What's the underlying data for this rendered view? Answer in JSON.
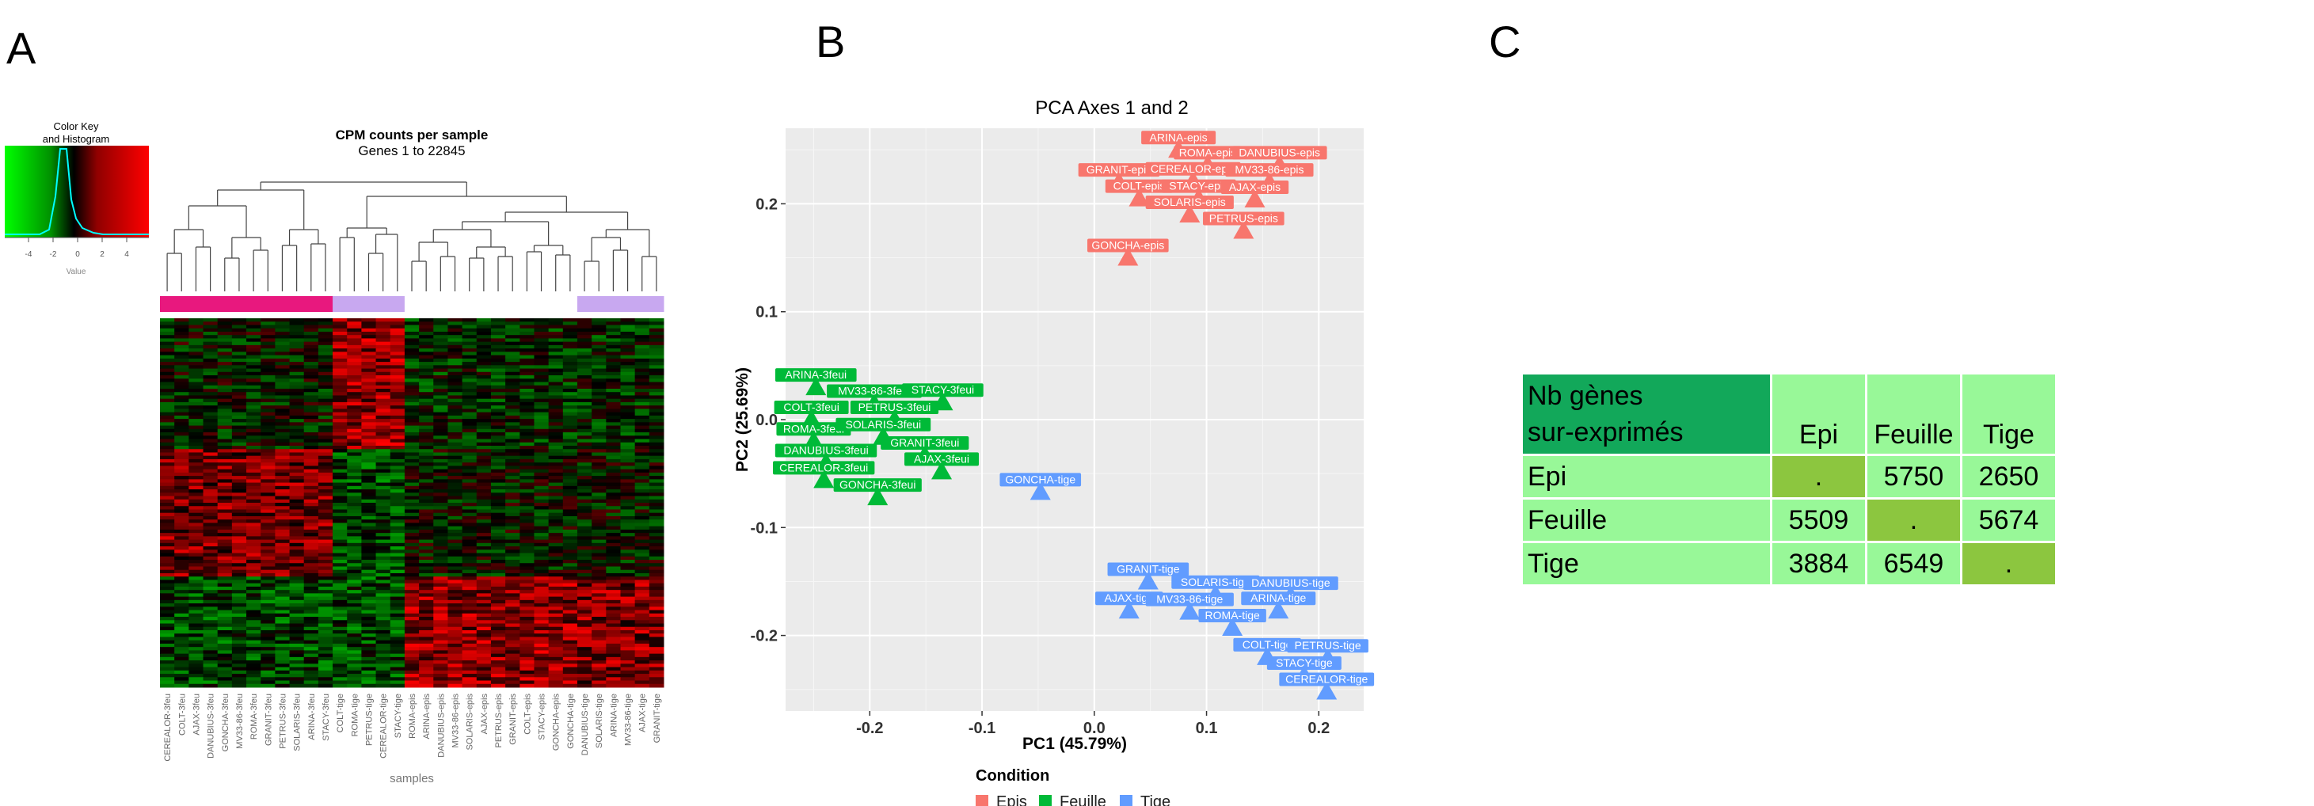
{
  "panels": {
    "a": "A",
    "b": "B",
    "c": "C"
  },
  "colors": {
    "epis": "#F8766D",
    "feuille": "#00BA38",
    "tige": "#619CFF",
    "pink": "#E8187E",
    "lavender": "#C8A8F0",
    "heat_green": "#00C000",
    "heat_red": "#FF0000",
    "table_dark": "#12A85A",
    "table_light": "#98F898",
    "table_mid": "#8CC63F",
    "plot_bg": "#EBEBEB"
  },
  "heatmap": {
    "title_line1": "CPM counts per sample",
    "title_line2": "Genes 1 to 22845",
    "color_key_title_line1": "Color Key",
    "color_key_title_line2": "and Histogram",
    "color_key_ticks": [
      "-4",
      "-2",
      "0",
      "2",
      "4"
    ],
    "color_key_xlabel": "Value",
    "xlabel": "samples",
    "samples": [
      "CEREALOR-3feu",
      "COLT-3feu",
      "AJAX-3feu",
      "DANUBIUS-3feu",
      "GONCHA-3feu",
      "MV33-86-3feu",
      "ROMA-3feu",
      "GRANIT-3feu",
      "PETRUS-3feu",
      "SOLARIS-3feu",
      "ARINA-3feu",
      "STACY-3feu",
      "COLT-tige",
      "ROMA-tige",
      "PETRUS-tige",
      "CEREALOR-tige",
      "STACY-tige",
      "ROMA-epis",
      "ARINA-epis",
      "DANUBIUS-epis",
      "MV33-86-epis",
      "SOLARIS-epis",
      "AJAX-epis",
      "PETRUS-epis",
      "GRANIT-epis",
      "COLT-epis",
      "STACY-epis",
      "GONCHA-epis",
      "GONCHA-tige",
      "DANUBIUS-tige",
      "SOLARIS-tige",
      "ARINA-tige",
      "MV33-86-tige",
      "AJAX-tige",
      "GRANIT-tige"
    ],
    "condition_bar": [
      "pink",
      "pink",
      "pink",
      "pink",
      "pink",
      "pink",
      "pink",
      "pink",
      "pink",
      "pink",
      "pink",
      "pink",
      "lavender",
      "lavender",
      "lavender",
      "lavender",
      "lavender",
      "white",
      "white",
      "white",
      "white",
      "white",
      "white",
      "white",
      "white",
      "white",
      "white",
      "white",
      "white",
      "lavender",
      "lavender",
      "lavender",
      "lavender",
      "lavender",
      "lavender"
    ]
  },
  "chart_data": {
    "type": "scatter",
    "title": "PCA Axes 1 and 2",
    "xlabel": "PC1 (45.79%)",
    "ylabel": "PC2 (25.69%)",
    "xlim": [
      -0.275,
      0.24
    ],
    "ylim": [
      -0.27,
      0.27
    ],
    "xticks": [
      -0.2,
      -0.1,
      0.0,
      0.1,
      0.2
    ],
    "xtick_labels": [
      "-0.2",
      "-0.1",
      "0.0",
      "0.1",
      "0.2"
    ],
    "yticks": [
      -0.2,
      -0.1,
      0.0,
      0.1,
      0.2
    ],
    "ytick_labels": [
      "-0.2",
      "-0.1",
      "0.0",
      "0.1",
      "0.2"
    ],
    "grid": true,
    "legend": {
      "title": "Condition",
      "placement": "bottom",
      "entries": [
        "Epis",
        "Feuille",
        "Tige"
      ]
    },
    "series": [
      {
        "name": "Epis",
        "points": [
          {
            "label": "ARINA-epis",
            "x": 0.075,
            "y": 0.25
          },
          {
            "label": "ROMA-epis",
            "x": 0.101,
            "y": 0.236
          },
          {
            "label": "DANUBIUS-epis",
            "x": 0.165,
            "y": 0.236
          },
          {
            "label": "GRANIT-epis",
            "x": 0.022,
            "y": 0.22
          },
          {
            "label": "CEREALOR-epis",
            "x": 0.088,
            "y": 0.221
          },
          {
            "label": "MV33-86-epis",
            "x": 0.156,
            "y": 0.22
          },
          {
            "label": "COLT-epis",
            "x": 0.04,
            "y": 0.205
          },
          {
            "label": "STACY-epis",
            "x": 0.093,
            "y": 0.205
          },
          {
            "label": "AJAX-epis",
            "x": 0.143,
            "y": 0.204
          },
          {
            "label": "SOLARIS-epis",
            "x": 0.085,
            "y": 0.19
          },
          {
            "label": "PETRUS-epis",
            "x": 0.133,
            "y": 0.175
          },
          {
            "label": "GONCHA-epis",
            "x": 0.03,
            "y": 0.15
          }
        ]
      },
      {
        "name": "Feuille",
        "points": [
          {
            "label": "ARINA-3feui",
            "x": -0.248,
            "y": 0.03
          },
          {
            "label": "MV33-86-3feui",
            "x": -0.196,
            "y": 0.015
          },
          {
            "label": "STACY-3feui",
            "x": -0.135,
            "y": 0.016
          },
          {
            "label": "COLT-3feui",
            "x": -0.252,
            "y": 0.0
          },
          {
            "label": "PETRUS-3feui",
            "x": -0.178,
            "y": 0.0
          },
          {
            "label": "ROMA-3feui",
            "x": -0.25,
            "y": -0.02
          },
          {
            "label": "SOLARIS-3feui",
            "x": -0.188,
            "y": -0.016
          },
          {
            "label": "GRANIT-3feui",
            "x": -0.151,
            "y": -0.033
          },
          {
            "label": "DANUBIUS-3feui",
            "x": -0.239,
            "y": -0.04
          },
          {
            "label": "AJAX-3feui",
            "x": -0.136,
            "y": -0.048
          },
          {
            "label": "CEREALOR-3feui",
            "x": -0.241,
            "y": -0.056
          },
          {
            "label": "GONCHA-3feui",
            "x": -0.193,
            "y": -0.072
          }
        ]
      },
      {
        "name": "Tige",
        "points": [
          {
            "label": "GONCHA-tige",
            "x": -0.048,
            "y": -0.067
          },
          {
            "label": "GRANIT-tige",
            "x": 0.048,
            "y": -0.15
          },
          {
            "label": "SOLARIS-tige",
            "x": 0.108,
            "y": -0.162
          },
          {
            "label": "DANUBIUS-tige",
            "x": 0.175,
            "y": -0.163
          },
          {
            "label": "AJAX-tige",
            "x": 0.031,
            "y": -0.177
          },
          {
            "label": "MV33-86-tige",
            "x": 0.085,
            "y": -0.178
          },
          {
            "label": "ARINA-tige",
            "x": 0.164,
            "y": -0.177
          },
          {
            "label": "ROMA-tige",
            "x": 0.123,
            "y": -0.193
          },
          {
            "label": "COLT-tige",
            "x": 0.154,
            "y": -0.22
          },
          {
            "label": "PETRUS-tige",
            "x": 0.208,
            "y": -0.221
          },
          {
            "label": "STACY-tige",
            "x": 0.187,
            "y": -0.237
          },
          {
            "label": "CEREALOR-tige",
            "x": 0.207,
            "y": -0.252
          }
        ]
      }
    ]
  },
  "table": {
    "header_line1": "Nb gènes",
    "header_line2": "sur-exprimés",
    "columns": [
      "Epi",
      "Feuille",
      "Tige"
    ],
    "rows": [
      {
        "label": "Epi",
        "values": [
          ".",
          "5750",
          "2650"
        ]
      },
      {
        "label": "Feuille",
        "values": [
          "5509",
          ".",
          "5674"
        ]
      },
      {
        "label": "Tige",
        "values": [
          "3884",
          "6549",
          "."
        ]
      }
    ]
  }
}
